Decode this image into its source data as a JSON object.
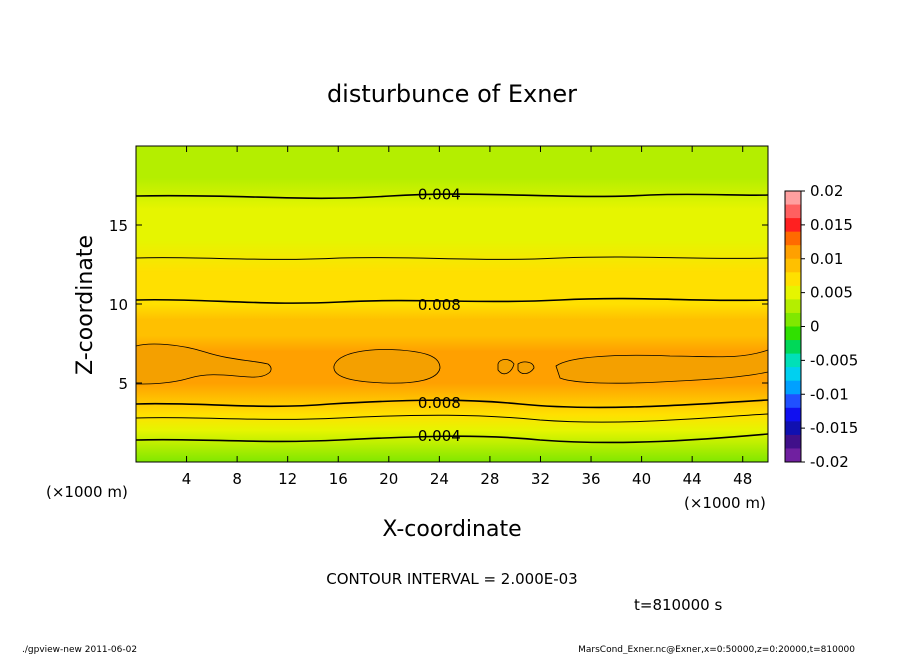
{
  "chart_data": {
    "type": "heatmap",
    "title": "disturbunce of Exner",
    "xlabel": "X-coordinate",
    "ylabel": "Z-coordinate",
    "x_unit_left": "(×1000 m)",
    "x_unit_right": "(×1000 m)",
    "xlim": [
      0,
      50
    ],
    "ylim": [
      0,
      20
    ],
    "xticks": [
      4,
      8,
      12,
      16,
      20,
      24,
      28,
      32,
      36,
      40,
      44,
      48
    ],
    "yticks": [
      5,
      10,
      15
    ],
    "colorbar": {
      "ticks": [
        "0.02",
        "0.015",
        "0.01",
        "0.005",
        "0",
        "-0.005",
        "-0.01",
        "-0.015",
        "-0.02"
      ],
      "colors": [
        "#ffa0a0",
        "#ff6060",
        "#ff2020",
        "#ff6a00",
        "#ffa000",
        "#ffc000",
        "#ffe000",
        "#e6f500",
        "#b4ee00",
        "#80e800",
        "#30e000",
        "#00d858",
        "#00e0b8",
        "#00d0f0",
        "#00a0ff",
        "#2050ff",
        "#1010f0",
        "#1010b0",
        "#40108a",
        "#7020a0"
      ]
    },
    "profile": {
      "z": [
        0,
        1,
        2,
        3,
        4,
        5,
        6,
        7,
        8,
        9,
        10,
        12,
        14,
        16,
        18,
        20
      ],
      "value": [
        0.002,
        0.004,
        0.006,
        0.008,
        0.009,
        0.0105,
        0.0105,
        0.0102,
        0.0096,
        0.0088,
        0.008,
        0.0064,
        0.0052,
        0.0042,
        0.0034,
        0.0026
      ]
    },
    "contour_labels": [
      {
        "text": "0.004",
        "x": 24,
        "z": 17.0
      },
      {
        "text": "0.008",
        "x": 24,
        "z": 10.0
      },
      {
        "text": "0.008",
        "x": 24,
        "z": 3.8
      },
      {
        "text": "0.004",
        "x": 24,
        "z": 1.7
      }
    ],
    "contour_interval_text": "CONTOUR INTERVAL = 2.000E-03",
    "time_text": "t=810000 s"
  },
  "footer": {
    "left": "./gpview-new  2011-06-02",
    "right": "MarsCond_Exner.nc@Exner,x=0:50000,z=0:20000,t=810000"
  }
}
